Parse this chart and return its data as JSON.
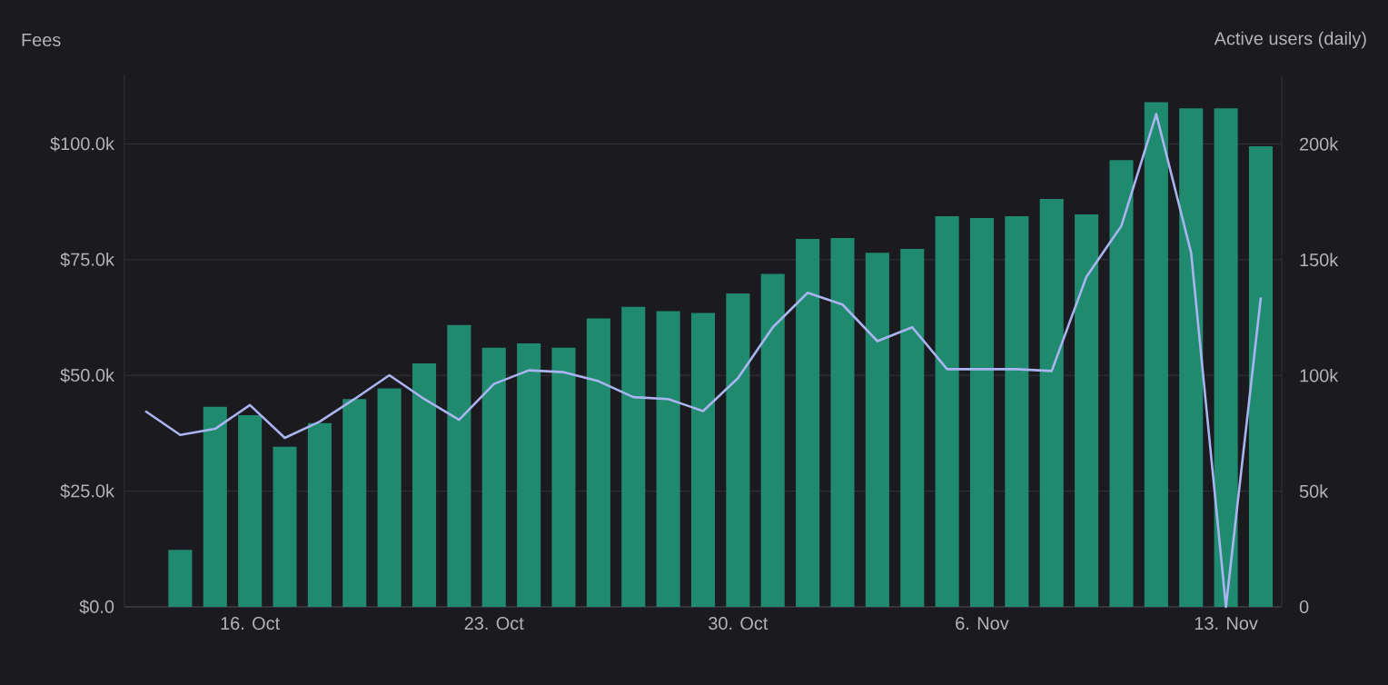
{
  "chart_data": {
    "type": "bar",
    "ylabel": "Fees",
    "y2label": "Active users (daily)",
    "categories": [
      null,
      null,
      null,
      "16. Oct",
      null,
      null,
      null,
      null,
      null,
      null,
      "23. Oct",
      null,
      null,
      null,
      null,
      null,
      null,
      "30. Oct",
      null,
      null,
      null,
      null,
      null,
      null,
      "6. Nov",
      null,
      null,
      null,
      null,
      null,
      null,
      "13. Nov",
      null
    ],
    "series": [
      {
        "color": "#1f8a6e",
        "values": [
          null,
          12300,
          43200,
          41400,
          34600,
          39700,
          44900,
          47200,
          52600,
          60900,
          56000,
          56900,
          56000,
          62300,
          64800,
          63900,
          63500,
          67700,
          71900,
          79500,
          79700,
          76500,
          77300,
          84400,
          84000,
          84400,
          88100,
          84800,
          96500,
          109000,
          107700,
          107700,
          99500
        ]
      },
      {
        "type": "line",
        "axis": "y2",
        "color": "#a9b4f0",
        "values": [
          84600,
          74300,
          76900,
          87200,
          73000,
          80000,
          89800,
          100100,
          89800,
          80800,
          96300,
          102200,
          101400,
          97500,
          90600,
          89800,
          84600,
          98800,
          120800,
          135700,
          130600,
          114800,
          120800,
          102700,
          102700,
          102700,
          101900,
          142700,
          164600,
          212900,
          153000,
          0,
          133700
        ]
      }
    ],
    "ylim": [
      0,
      115000
    ],
    "yticks": [
      {
        "value": 0,
        "label": "$0.0"
      },
      {
        "value": 25000,
        "label": "$25.0k"
      },
      {
        "value": 50000,
        "label": "$50.0k"
      },
      {
        "value": 75000,
        "label": "$75.0k"
      },
      {
        "value": 100000,
        "label": "$100.0k"
      }
    ],
    "y2lim": [
      0,
      230000
    ],
    "y2ticks": [
      0,
      {
        "value": 50000,
        "label": "50k"
      },
      {
        "value": 100000,
        "label": "100k"
      },
      {
        "value": 150000,
        "label": "150k"
      },
      {
        "value": 200000,
        "label": "200k"
      }
    ],
    "grid": "y"
  }
}
